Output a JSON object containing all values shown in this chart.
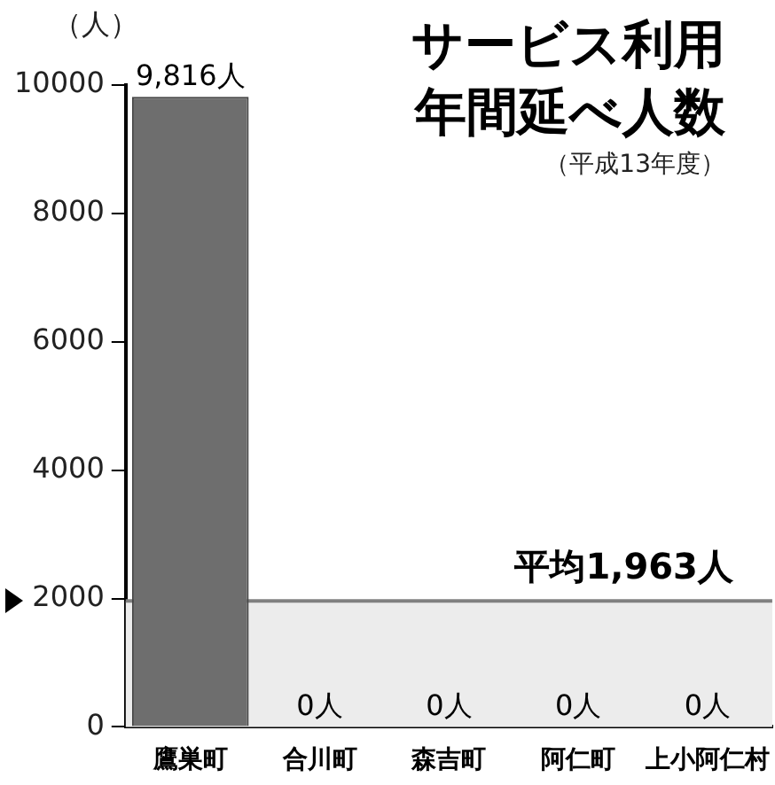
{
  "chart_data": {
    "type": "bar",
    "title": "サービス利用年間延べ人数",
    "subtitle": "（平成13年度）",
    "ylabel": "（人）",
    "categories": [
      "鷹巣町",
      "合川町",
      "森吉町",
      "阿仁町",
      "上小阿仁村"
    ],
    "values": [
      9816,
      0,
      0,
      0,
      0
    ],
    "color": "#6e6e6e",
    "value_labels": [
      "9,816人",
      "0人",
      "0人",
      "0人",
      "0人"
    ],
    "ylim": [
      0,
      10000
    ],
    "yticks": [
      0,
      2000,
      4000,
      6000,
      8000,
      10000
    ],
    "ref_lines": [
      {
        "axis": "y",
        "value": 1963,
        "label": "平均1,963人",
        "color": "#808080"
      }
    ],
    "bands": [
      {
        "axis": "y",
        "from": 0,
        "to": 1963,
        "color": "#ececec"
      }
    ],
    "grid": false,
    "legend": false
  }
}
